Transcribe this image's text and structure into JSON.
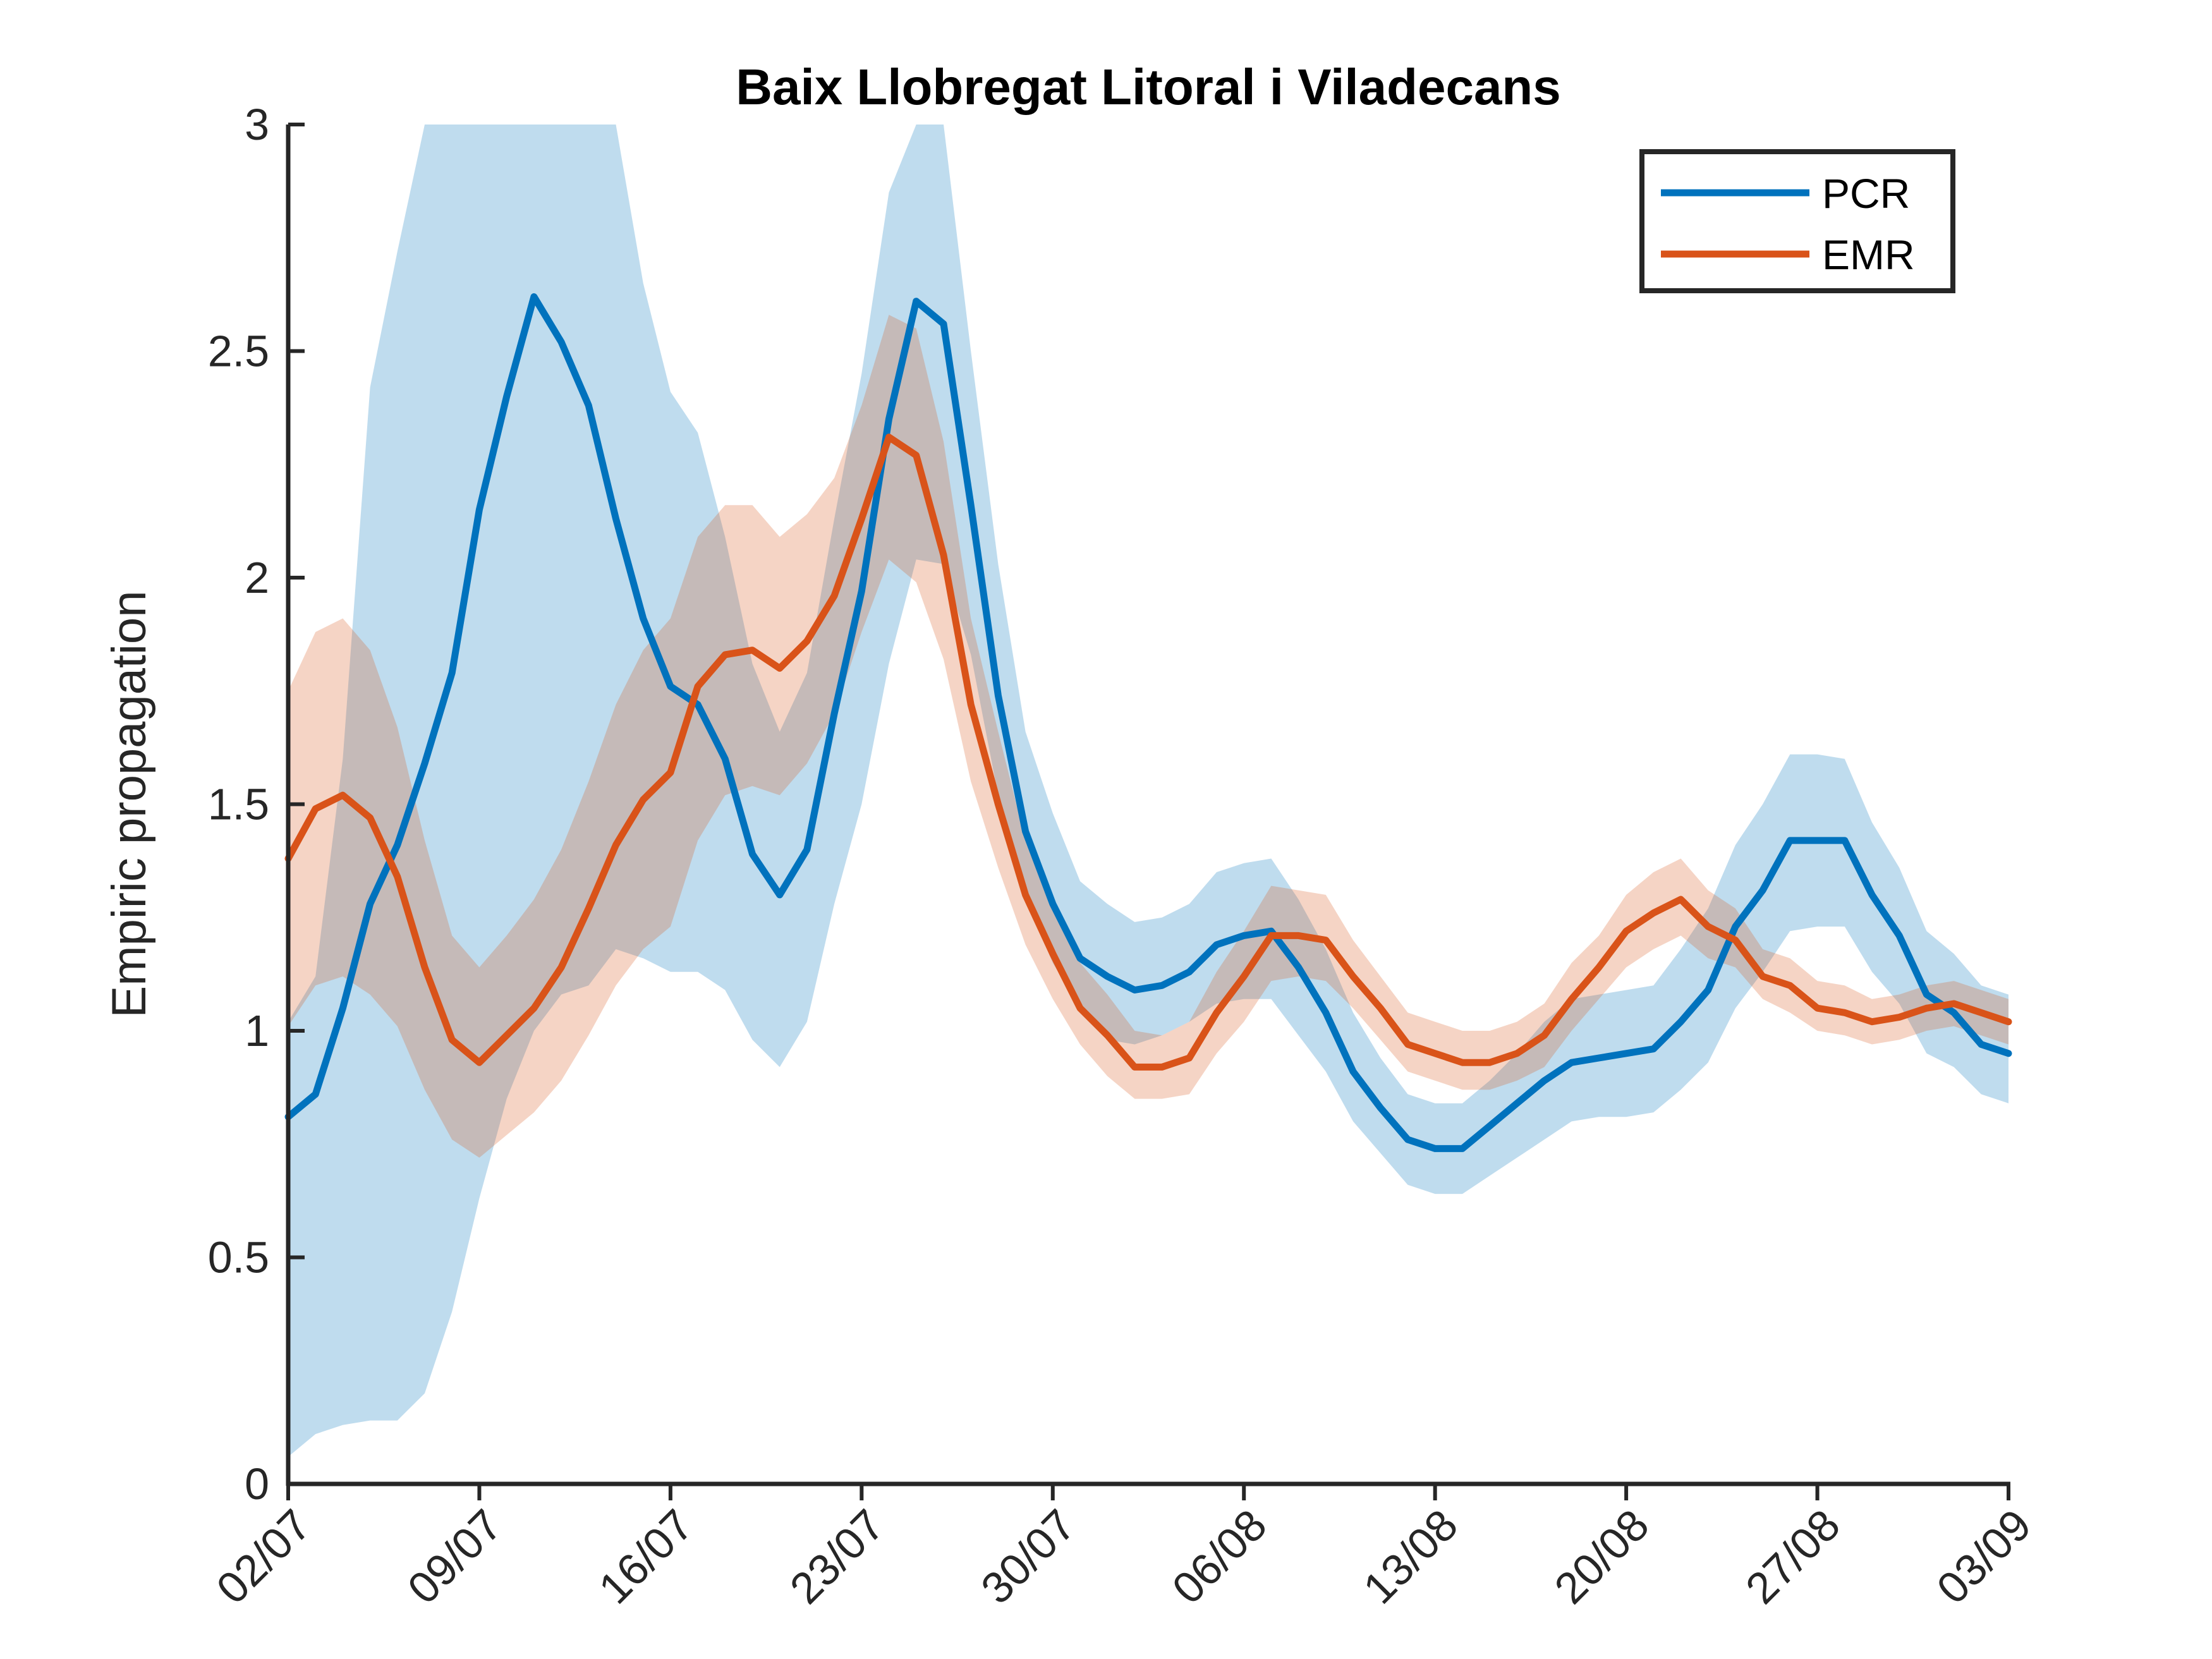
{
  "chart_data": {
    "type": "line",
    "title": "Baix Llobregat Litoral i Viladecans",
    "xlabel": "",
    "ylabel": "Empiric propagation",
    "x_ticks": [
      "02/07",
      "09/07",
      "16/07",
      "23/07",
      "30/07",
      "06/08",
      "13/08",
      "20/08",
      "27/08",
      "03/09"
    ],
    "y_ticks": [
      "0",
      "0.5",
      "1",
      "1.5",
      "2",
      "2.5",
      "3"
    ],
    "ylim": [
      0,
      3
    ],
    "x_range_days": [
      0,
      63
    ],
    "grid": false,
    "legend_position": "top-right",
    "series": [
      {
        "name": "PCR",
        "color": "#0072BD",
        "band_color": "#0072BD",
        "x": [
          0,
          1,
          2,
          3,
          4,
          5,
          6,
          7,
          8,
          9,
          10,
          11,
          12,
          13,
          14,
          15,
          16,
          17,
          18,
          19,
          20,
          21,
          22,
          23,
          24,
          25,
          26,
          27,
          28,
          29,
          30,
          31,
          32,
          33,
          34,
          35,
          36,
          37,
          38,
          39,
          40,
          41,
          42,
          43,
          44,
          45,
          46,
          47,
          48,
          49,
          50,
          51,
          52,
          53,
          54,
          55,
          56,
          57,
          58,
          59,
          60,
          61,
          62,
          63
        ],
        "values": [
          0.81,
          0.86,
          1.05,
          1.28,
          1.41,
          1.59,
          1.79,
          2.15,
          2.4,
          2.62,
          2.52,
          2.38,
          2.13,
          1.91,
          1.76,
          1.72,
          1.6,
          1.39,
          1.3,
          1.4,
          1.7,
          1.97,
          2.35,
          2.61,
          2.56,
          2.16,
          1.74,
          1.44,
          1.28,
          1.16,
          1.12,
          1.09,
          1.1,
          1.13,
          1.19,
          1.21,
          1.22,
          1.14,
          1.04,
          0.91,
          0.83,
          0.76,
          0.74,
          0.74,
          0.79,
          0.84,
          0.89,
          0.93,
          0.94,
          0.95,
          0.96,
          1.02,
          1.09,
          1.23,
          1.31,
          1.42,
          1.42,
          1.42,
          1.3,
          1.21,
          1.08,
          1.04,
          0.97,
          0.95
        ],
        "lower": [
          0.06,
          0.11,
          0.13,
          0.14,
          0.14,
          0.2,
          0.38,
          0.63,
          0.85,
          1.0,
          1.08,
          1.1,
          1.18,
          1.16,
          1.13,
          1.13,
          1.09,
          0.98,
          0.92,
          1.02,
          1.28,
          1.5,
          1.81,
          2.04,
          2.03,
          1.83,
          1.52,
          1.29,
          1.15,
          1.05,
          0.98,
          0.97,
          0.99,
          1.02,
          1.06,
          1.07,
          1.07,
          0.99,
          0.91,
          0.8,
          0.73,
          0.66,
          0.64,
          0.64,
          0.68,
          0.72,
          0.76,
          0.8,
          0.81,
          0.81,
          0.82,
          0.87,
          0.93,
          1.05,
          1.13,
          1.22,
          1.23,
          1.23,
          1.13,
          1.06,
          0.95,
          0.92,
          0.86,
          0.84
        ],
        "upper": [
          1.02,
          1.12,
          1.6,
          2.42,
          2.72,
          3.04,
          3.15,
          3.2,
          3.25,
          3.2,
          3.15,
          3.07,
          3.02,
          2.65,
          2.41,
          2.32,
          2.09,
          1.81,
          1.66,
          1.79,
          2.13,
          2.45,
          2.85,
          3.1,
          3.06,
          2.5,
          2.03,
          1.66,
          1.48,
          1.33,
          1.28,
          1.24,
          1.25,
          1.28,
          1.35,
          1.37,
          1.38,
          1.29,
          1.18,
          1.04,
          0.94,
          0.86,
          0.84,
          0.84,
          0.89,
          0.95,
          1.02,
          1.07,
          1.08,
          1.09,
          1.1,
          1.18,
          1.27,
          1.41,
          1.5,
          1.61,
          1.61,
          1.6,
          1.46,
          1.36,
          1.22,
          1.17,
          1.1,
          1.08
        ]
      },
      {
        "name": "EMR",
        "color": "#D95319",
        "band_color": "#D95319",
        "x": [
          0,
          1,
          2,
          3,
          4,
          5,
          6,
          7,
          8,
          9,
          10,
          11,
          12,
          13,
          14,
          15,
          16,
          17,
          18,
          19,
          20,
          21,
          22,
          23,
          24,
          25,
          26,
          27,
          28,
          29,
          30,
          31,
          32,
          33,
          34,
          35,
          36,
          37,
          38,
          39,
          40,
          41,
          42,
          43,
          44,
          45,
          46,
          47,
          48,
          49,
          50,
          51,
          52,
          53,
          54,
          55,
          56,
          57,
          58,
          59,
          60,
          61,
          62,
          63
        ],
        "values": [
          1.38,
          1.49,
          1.52,
          1.47,
          1.34,
          1.14,
          0.98,
          0.93,
          0.99,
          1.05,
          1.14,
          1.27,
          1.41,
          1.51,
          1.57,
          1.76,
          1.83,
          1.84,
          1.8,
          1.86,
          1.96,
          2.13,
          2.31,
          2.27,
          2.05,
          1.72,
          1.5,
          1.3,
          1.17,
          1.05,
          0.99,
          0.92,
          0.92,
          0.94,
          1.04,
          1.12,
          1.21,
          1.21,
          1.2,
          1.12,
          1.05,
          0.97,
          0.95,
          0.93,
          0.93,
          0.95,
          0.99,
          1.07,
          1.14,
          1.22,
          1.26,
          1.29,
          1.23,
          1.2,
          1.12,
          1.1,
          1.05,
          1.04,
          1.02,
          1.03,
          1.05,
          1.06,
          1.04,
          1.02
        ],
        "lower": [
          1.01,
          1.1,
          1.12,
          1.08,
          1.01,
          0.87,
          0.76,
          0.72,
          0.77,
          0.82,
          0.89,
          0.99,
          1.1,
          1.18,
          1.23,
          1.42,
          1.52,
          1.54,
          1.52,
          1.59,
          1.7,
          1.88,
          2.04,
          1.99,
          1.82,
          1.55,
          1.36,
          1.19,
          1.07,
          0.97,
          0.9,
          0.85,
          0.85,
          0.86,
          0.95,
          1.02,
          1.11,
          1.12,
          1.11,
          1.05,
          0.98,
          0.91,
          0.89,
          0.87,
          0.87,
          0.89,
          0.92,
          1.0,
          1.07,
          1.14,
          1.18,
          1.21,
          1.16,
          1.14,
          1.07,
          1.04,
          1.0,
          0.99,
          0.97,
          0.98,
          1.0,
          1.01,
          0.99,
          0.97
        ],
        "upper": [
          1.75,
          1.88,
          1.91,
          1.84,
          1.67,
          1.42,
          1.21,
          1.14,
          1.21,
          1.29,
          1.4,
          1.55,
          1.72,
          1.84,
          1.91,
          2.09,
          2.16,
          2.16,
          2.09,
          2.14,
          2.22,
          2.38,
          2.58,
          2.55,
          2.3,
          1.91,
          1.66,
          1.42,
          1.28,
          1.15,
          1.08,
          1.0,
          0.99,
          1.02,
          1.13,
          1.22,
          1.32,
          1.31,
          1.3,
          1.2,
          1.12,
          1.04,
          1.02,
          1.0,
          1.0,
          1.02,
          1.06,
          1.15,
          1.21,
          1.3,
          1.35,
          1.38,
          1.31,
          1.27,
          1.18,
          1.16,
          1.11,
          1.1,
          1.07,
          1.08,
          1.1,
          1.11,
          1.09,
          1.07
        ]
      }
    ]
  }
}
